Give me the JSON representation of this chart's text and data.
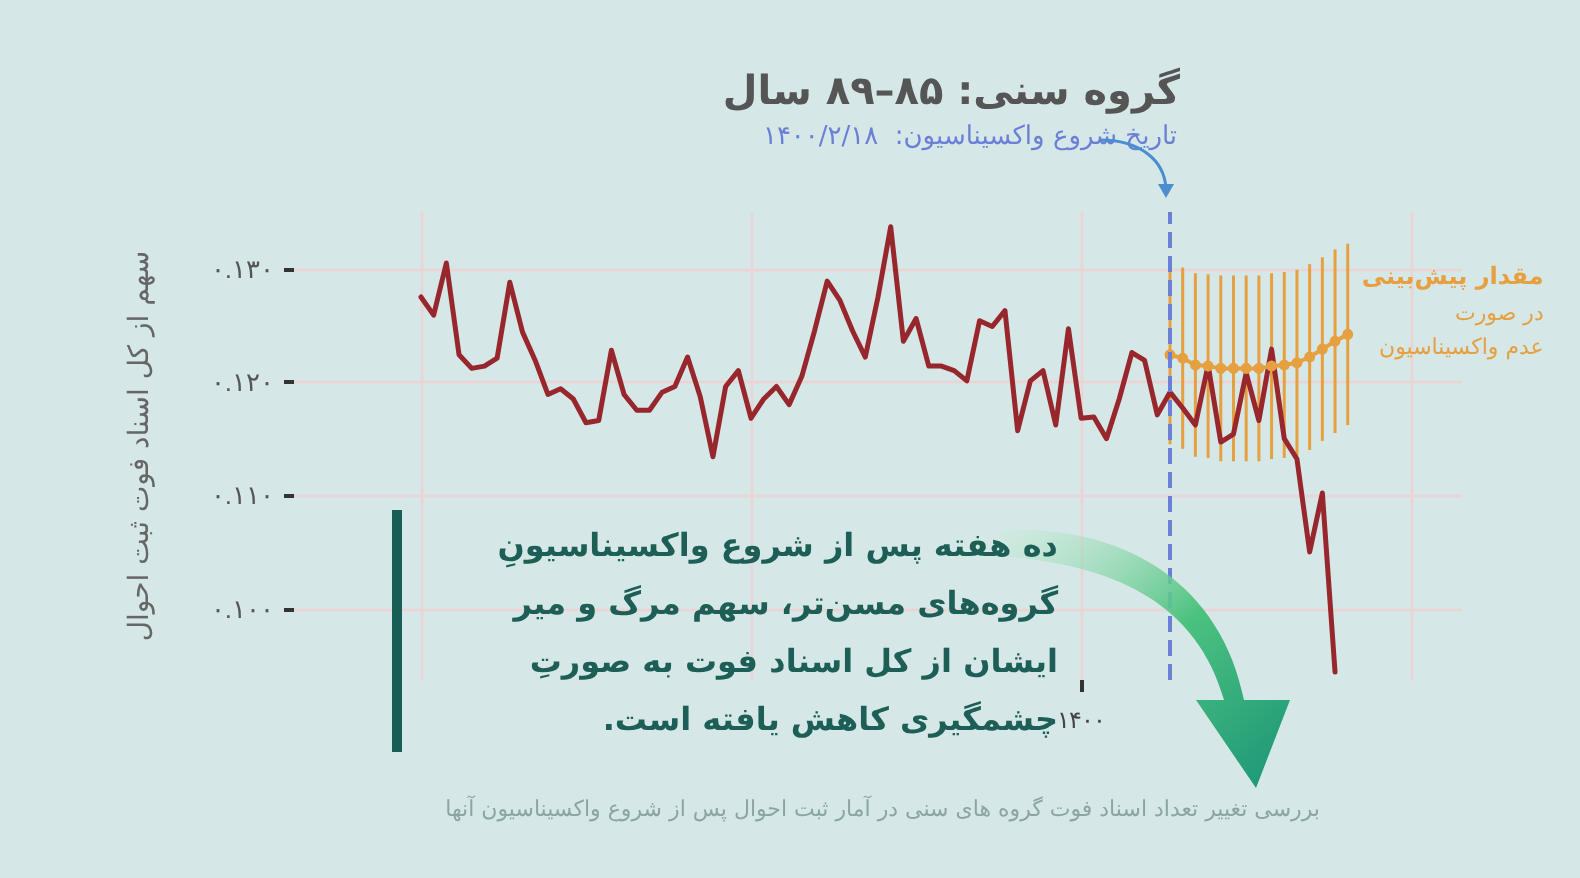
{
  "chart_data": {
    "type": "line",
    "title": "گروه سنی: ۸۵–۸۹ سال",
    "ylabel": "سهم از کل اسناد فوت ثبت احوال",
    "categories": [
      null,
      null,
      null,
      null,
      null,
      null,
      null,
      null,
      null,
      null,
      null,
      null,
      null,
      null,
      null,
      null,
      null,
      null,
      null,
      null,
      null,
      null,
      null,
      null,
      null,
      null,
      null,
      null,
      null,
      null,
      null,
      null,
      null,
      null,
      null,
      null,
      null,
      null,
      null,
      null,
      null,
      null,
      null,
      null,
      null,
      null,
      null,
      null,
      null,
      null,
      null,
      null,
      null,
      null,
      null,
      null,
      null,
      null,
      null,
      null,
      null,
      null,
      "۱۴۰۰",
      null,
      null,
      null,
      null,
      null,
      null,
      null,
      null,
      null,
      null,
      null,
      null,
      null,
      null,
      null,
      null,
      null,
      null,
      null,
      null,
      null,
      null,
      null,
      null,
      null,
      null,
      null,
      null,
      null,
      null
    ],
    "ylim": [
      0.0937,
      0.135
    ],
    "yticks": [
      {
        "value": 0.1,
        "label": "۰.۱۰۰"
      },
      {
        "value": 0.11,
        "label": "۰.۱۱۰"
      },
      {
        "value": 0.12,
        "label": "۰.۱۲۰"
      },
      {
        "value": 0.13,
        "label": "۰.۱۳۰"
      }
    ],
    "grid": true,
    "legend": false,
    "series": [
      {
        "color": "#97272c",
        "marker": "none",
        "values": [
          null,
          null,
          null,
          null,
          null,
          null,
          null,
          null,
          null,
          null,
          0.1275,
          0.1259,
          0.1305,
          0.1224,
          0.1212,
          0.1214,
          0.1221,
          0.1288,
          0.1244,
          0.1219,
          0.1189,
          0.1194,
          0.1185,
          0.1164,
          0.1166,
          0.1228,
          0.1189,
          0.1175,
          0.1175,
          0.1191,
          0.1196,
          0.1222,
          0.1187,
          0.1134,
          0.1196,
          0.121,
          0.1168,
          0.1185,
          0.1196,
          0.118,
          0.1205,
          0.1245,
          0.1289,
          0.1272,
          0.1245,
          0.1222,
          0.1275,
          0.1337,
          0.1236,
          0.1256,
          0.1214,
          0.1214,
          0.121,
          0.1201,
          0.1254,
          0.1249,
          0.1263,
          0.1157,
          0.1201,
          0.121,
          0.1162,
          0.1247,
          0.1168,
          0.1169,
          0.115,
          0.1185,
          0.1226,
          0.1219,
          0.1171,
          0.1191,
          0.1177,
          0.1162,
          0.1215,
          0.1147,
          0.1154,
          0.1208,
          0.1166,
          0.1229,
          0.115,
          0.1132,
          0.105,
          0.1102,
          0.0944,
          null,
          null,
          null,
          null,
          null,
          null,
          null,
          null,
          null,
          null
        ]
      },
      {
        "name": "مقدار پیش‌بینی\nدر صورت\nعدم واکسیناسیون",
        "color": "#e6a040",
        "marker": "circle",
        "values": [
          null,
          null,
          null,
          null,
          null,
          null,
          null,
          null,
          null,
          null,
          null,
          null,
          null,
          null,
          null,
          null,
          null,
          null,
          null,
          null,
          null,
          null,
          null,
          null,
          null,
          null,
          null,
          null,
          null,
          null,
          null,
          null,
          null,
          null,
          null,
          null,
          null,
          null,
          null,
          null,
          null,
          null,
          null,
          null,
          null,
          null,
          null,
          null,
          null,
          null,
          null,
          null,
          null,
          null,
          null,
          null,
          null,
          null,
          null,
          null,
          null,
          null,
          null,
          null,
          null,
          null,
          null,
          null,
          null,
          0.1224,
          0.1221,
          0.1215,
          0.1214,
          0.1212,
          0.1212,
          0.1212,
          0.1212,
          0.1214,
          0.1215,
          0.1217,
          0.1222,
          0.1229,
          0.1236,
          0.1242,
          null,
          null,
          null,
          null,
          null,
          null,
          null,
          null,
          null
        ],
        "errors": [
          null,
          null,
          null,
          null,
          null,
          null,
          null,
          null,
          null,
          null,
          null,
          null,
          null,
          null,
          null,
          null,
          null,
          null,
          null,
          null,
          null,
          null,
          null,
          null,
          null,
          null,
          null,
          null,
          null,
          null,
          null,
          null,
          null,
          null,
          null,
          null,
          null,
          null,
          null,
          null,
          null,
          null,
          null,
          null,
          null,
          null,
          null,
          null,
          null,
          null,
          null,
          null,
          null,
          null,
          null,
          null,
          null,
          null,
          null,
          null,
          null,
          null,
          null,
          null,
          null,
          null,
          null,
          null,
          null,
          0.0079,
          0.008,
          0.0081,
          0.0081,
          0.0082,
          0.0082,
          0.0082,
          0.0082,
          0.0082,
          0.0082,
          0.0082,
          0.0082,
          0.0081,
          0.0081,
          0.008,
          null,
          null,
          null,
          null,
          null,
          null,
          null,
          null,
          null
        ]
      }
    ],
    "annotations": [
      "تاریخ شروع واکسیناسیون:  ۱۴۰۰/۲/۱۸",
      "ده هفته پس از شروع واکسیناسیونِ گروه‌های مسن‌تر، سهم مرگ و میر ایشان از کل اسناد فوت به صورتِ چشمگیری کاهش یافته است.",
      "بررسی تغییر تعداد اسناد فوت گروه های سنی در آمار ثبت احوال پس از شروع واکسیناسیون آنها"
    ]
  }
}
